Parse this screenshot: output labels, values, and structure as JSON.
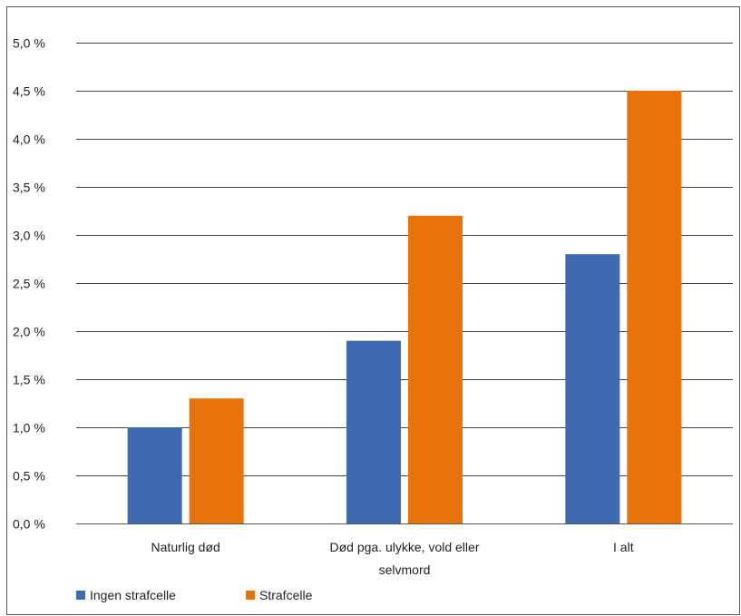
{
  "chart_data": {
    "type": "bar",
    "categories": [
      "Naturlig død",
      "Død pga. ulykke, vold eller selvmord",
      "I alt"
    ],
    "category_label_lines": [
      [
        "Naturlig død"
      ],
      [
        "Død pga. ulykke, vold eller",
        "selvmord"
      ],
      [
        "I alt"
      ]
    ],
    "series": [
      {
        "name": "Ingen strafcelle",
        "values": [
          1.0,
          1.9,
          2.8
        ],
        "color": "#3f69b0"
      },
      {
        "name": "Strafcelle",
        "values": [
          1.3,
          3.2,
          4.5
        ],
        "color": "#e8730a"
      }
    ],
    "ylim": [
      0,
      5
    ],
    "y_ticks": [
      0,
      0.5,
      1.0,
      1.5,
      2.0,
      2.5,
      3.0,
      3.5,
      4.0,
      4.5,
      5.0
    ],
    "y_tick_labels": [
      "0,0 %",
      "0,5 %",
      "1,0 %",
      "1,5 %",
      "2,0 %",
      "2,5 %",
      "3,0 %",
      "3,5 %",
      "4,0 %",
      "4,5 %",
      "5,0 %"
    ],
    "grid": true,
    "legend_position": "bottom-left",
    "xlabel": "",
    "ylabel": "",
    "title": ""
  }
}
